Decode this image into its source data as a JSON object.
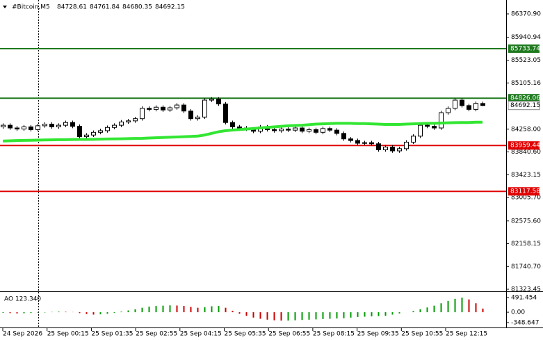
{
  "chart_data": {
    "type": "candlestick",
    "symbol": "#Bitcoin,M5",
    "bull_color": "#ffffff",
    "bear_color": "#000000",
    "open": [
      84300,
      84330,
      84280,
      84260,
      84300,
      84250,
      84320,
      84350,
      84300,
      84330,
      84380,
      84310,
      84120,
      84150,
      84200,
      84230,
      84290,
      84330,
      84390,
      84410,
      84450,
      84640,
      84620,
      84660,
      84610,
      84650,
      84700,
      84590,
      84450,
      84480,
      84790,
      84810,
      84720,
      84380,
      84300,
      84280,
      84260,
      84220,
      84300,
      84250,
      84230,
      84260,
      84240,
      84280,
      84220,
      84250,
      84200,
      84270,
      84240,
      84180,
      84080,
      84050,
      84000,
      84010,
      83990,
      83880,
      83930,
      83860,
      83900,
      84020,
      84130,
      84330,
      84310,
      84280,
      84560,
      84640,
      84790,
      84690,
      84620,
      84728.61
    ],
    "high": [
      84365,
      84365,
      84315,
      84335,
      84335,
      84355,
      84385,
      84385,
      84365,
      84415,
      84415,
      84345,
      84185,
      84235,
      84265,
      84325,
      84365,
      84425,
      84445,
      84485,
      84675,
      84675,
      84695,
      84695,
      84685,
      84735,
      84735,
      84625,
      84515,
      84825,
      84845,
      84845,
      84755,
      84415,
      84335,
      84315,
      84295,
      84335,
      84335,
      84285,
      84295,
      84295,
      84315,
      84315,
      84285,
      84285,
      84305,
      84305,
      84275,
      84215,
      84115,
      84085,
      84045,
      84045,
      84025,
      83965,
      83965,
      83935,
      84055,
      84165,
      84365,
      84365,
      84345,
      84595,
      84675,
      84825,
      84825,
      84725,
      84765,
      84761.84
    ],
    "low": [
      84265,
      84245,
      84225,
      84225,
      84215,
      84215,
      84285,
      84265,
      84265,
      84295,
      84275,
      84085,
      84085,
      84115,
      84165,
      84195,
      84255,
      84295,
      84355,
      84375,
      84415,
      84585,
      84585,
      84575,
      84575,
      84615,
      84555,
      84415,
      84415,
      84445,
      84755,
      84685,
      84345,
      84265,
      84245,
      84225,
      84185,
      84185,
      84215,
      84195,
      84195,
      84205,
      84205,
      84185,
      84185,
      84165,
      84165,
      84205,
      84145,
      84045,
      84015,
      83965,
      83965,
      83955,
      83845,
      83845,
      83825,
      83825,
      83865,
      83985,
      84095,
      84275,
      84245,
      84245,
      84525,
      84605,
      84655,
      84585,
      84585,
      84680.35
    ],
    "close": [
      84330,
      84280,
      84260,
      84300,
      84250,
      84320,
      84350,
      84300,
      84330,
      84380,
      84310,
      84120,
      84150,
      84200,
      84230,
      84290,
      84330,
      84390,
      84410,
      84450,
      84640,
      84620,
      84660,
      84610,
      84650,
      84700,
      84590,
      84450,
      84480,
      84790,
      84810,
      84720,
      84380,
      84300,
      84280,
      84260,
      84220,
      84300,
      84250,
      84230,
      84260,
      84240,
      84280,
      84220,
      84250,
      84200,
      84270,
      84240,
      84180,
      84080,
      84050,
      84000,
      84010,
      83990,
      83880,
      83930,
      83860,
      83900,
      84020,
      84130,
      84330,
      84310,
      84280,
      84560,
      84640,
      84790,
      84690,
      84620,
      84730,
      84692.15
    ],
    "ma": {
      "color": "#33e633",
      "values": [
        84040,
        84045,
        84050,
        84052,
        84055,
        84058,
        84060,
        84062,
        84065,
        84065,
        84068,
        84070,
        84070,
        84072,
        84075,
        84078,
        84080,
        84082,
        84085,
        84088,
        84090,
        84095,
        84100,
        84105,
        84110,
        84115,
        84120,
        84125,
        84130,
        84150,
        84180,
        84210,
        84230,
        84240,
        84250,
        84260,
        84270,
        84280,
        84290,
        84300,
        84310,
        84320,
        84325,
        84330,
        84340,
        84350,
        84355,
        84360,
        84365,
        84365,
        84365,
        84360,
        84360,
        84355,
        84350,
        84345,
        84345,
        84345,
        84350,
        84355,
        84360,
        84365,
        84365,
        84370,
        84375,
        84378,
        84380,
        84380,
        84385,
        84385
      ]
    },
    "ylim": [
      81298,
      86562
    ],
    "yticks": [
      {
        "value": 86370.9,
        "label": "86370.90"
      },
      85940.94,
      85523.05,
      85105.16,
      {
        "value": 84258,
        "label": "84258.00"
      },
      {
        "value": 83840.6,
        "label": "83840.60"
      },
      83423.15,
      {
        "value": 83005.7,
        "label": "83005.70"
      },
      {
        "value": 82575.6,
        "label": "82575.60"
      },
      82158.15,
      {
        "value": 81740.7,
        "label": "81740.70"
      },
      81323.45
    ],
    "levels": [
      {
        "value": 85733.74,
        "color": "#1f7a1f"
      },
      {
        "value": 84826.06,
        "color": "#1f7a1f"
      },
      {
        "value": 83959.44,
        "color": "#e00000"
      },
      {
        "value": 83117.58,
        "color": "#e00000"
      }
    ],
    "x_labels": [
      "24 Sep 2026",
      "25 Sep 00:15",
      "25 Sep 01:35",
      "25 Sep 02:55",
      "25 Sep 04:15",
      "25 Sep 05:35",
      "25 Sep 06:55",
      "25 Sep 08:15",
      "25 Sep 09:35",
      "25 Sep 10:55",
      "25 Sep 12:15"
    ],
    "ao": {
      "title": "AO 123.340",
      "up_color": "#009900",
      "down_color": "#cc0000",
      "values": [
        -20,
        -30,
        -40,
        -35,
        -25,
        -15,
        -10,
        10,
        20,
        15,
        5,
        -30,
        -60,
        -80,
        -70,
        -50,
        -20,
        20,
        60,
        100,
        150,
        190,
        210,
        220,
        230,
        225,
        210,
        180,
        150,
        170,
        200,
        210,
        150,
        50,
        -50,
        -120,
        -180,
        -220,
        -250,
        -270,
        -280,
        -280,
        -270,
        -260,
        -250,
        -240,
        -230,
        -220,
        -210,
        -200,
        -180,
        -160,
        -150,
        -140,
        -130,
        -120,
        -80,
        -40,
        0,
        40,
        100,
        160,
        220,
        300,
        380,
        450,
        491.454,
        430,
        300,
        123.34
      ],
      "ylim": [
        -489,
        632
      ],
      "yticks": [
        {
          "value": 491.454,
          "label": "491.454"
        },
        {
          "value": 0,
          "label": "0.00"
        },
        {
          "value": -348.647,
          "label": "-348.647"
        }
      ]
    }
  }
}
